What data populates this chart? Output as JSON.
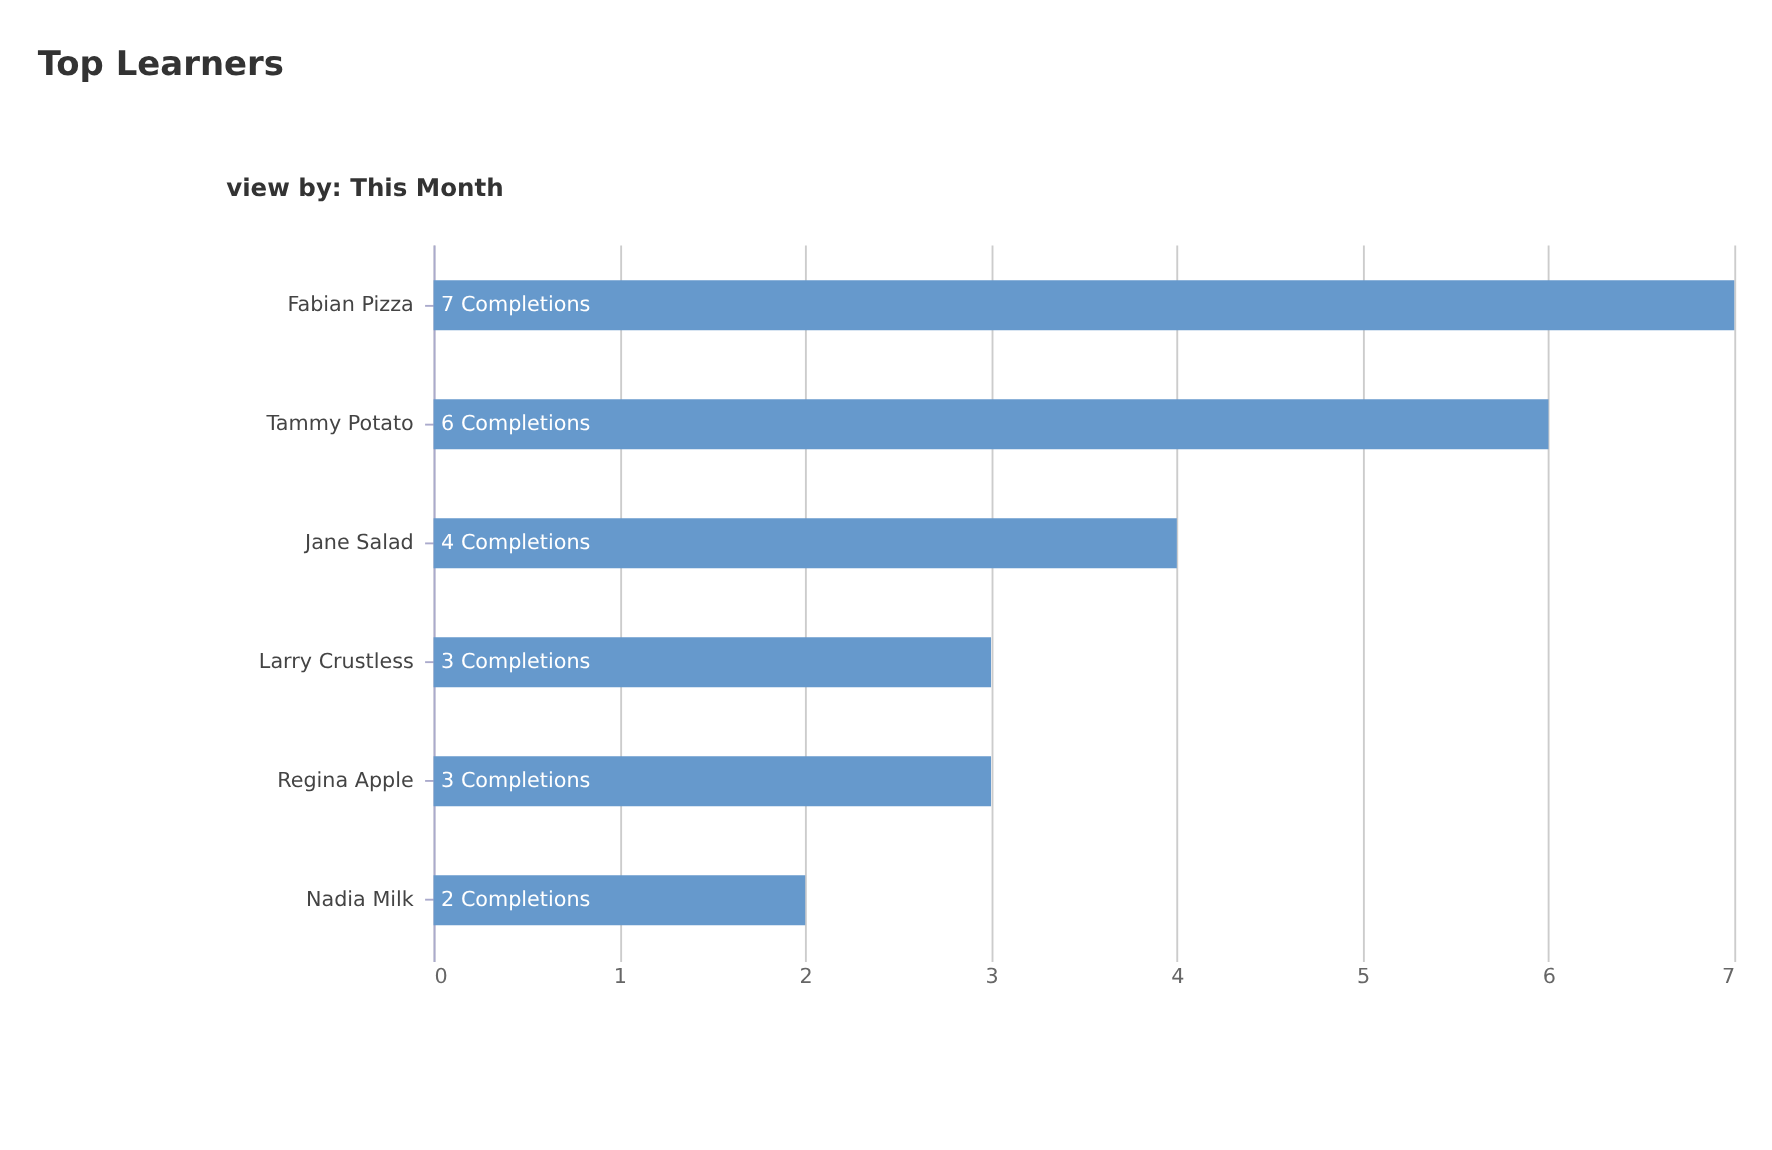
{
  "chart_data": {
    "type": "bar",
    "orientation": "horizontal",
    "title": "Top Learners",
    "annotations": [
      "view by: This Month"
    ],
    "categories": [
      "Fabian Pizza",
      "Tammy Potato",
      "Jane Salad",
      "Larry Crustless",
      "Regina Apple",
      "Nadia Milk"
    ],
    "values": [
      7,
      6,
      4,
      3,
      3,
      2
    ],
    "value_labels": [
      "7 Completions",
      "6 Completions",
      "4 Completions",
      "3 Completions",
      "3 Completions",
      "2 Completions"
    ],
    "color": "#6699cc",
    "xlim": [
      0,
      7
    ],
    "xticks": [
      0,
      1,
      2,
      3,
      4,
      5,
      6,
      7
    ],
    "grid": "x"
  }
}
